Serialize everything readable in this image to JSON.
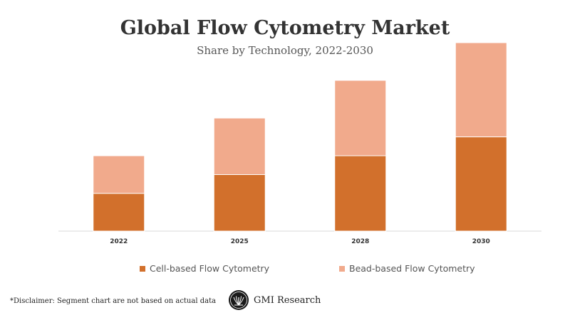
{
  "chart_data": {
    "type": "bar",
    "stacked": true,
    "title": "Global Flow Cytometry Market",
    "subtitle": "Share by Technology, 2022-2030",
    "categories": [
      "2022",
      "2025",
      "2028",
      "2030"
    ],
    "series": [
      {
        "name": "Cell-based Flow Cytometry",
        "color": "#d2702c",
        "values": [
          2.0,
          3.0,
          4.0,
          5.0
        ]
      },
      {
        "name": "Bead-based Flow Cytometry",
        "color": "#f1aa8c",
        "values": [
          2.0,
          3.0,
          4.0,
          5.0
        ]
      }
    ],
    "ylim": [
      0,
      10
    ],
    "grid": false,
    "legend_position": "bottom"
  },
  "footer": {
    "disclaimer": "*Disclaimer:  Segment chart are not based on actual data",
    "brand_name": "GMI Research",
    "brand_logo_icon": "gmi-research-logo-icon"
  },
  "colors": {
    "title": "#333333",
    "axis": "#d9d9d9",
    "tick_label": "#333333"
  }
}
